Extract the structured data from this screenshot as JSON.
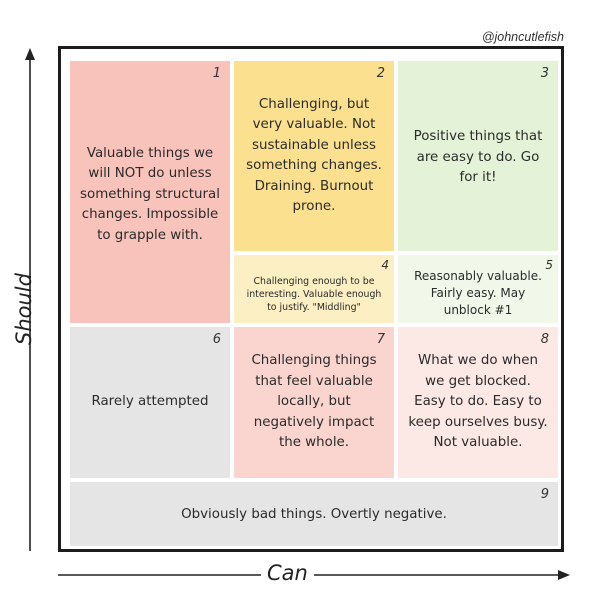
{
  "handle": "@johncutlefish",
  "axes": {
    "y_label": "Should",
    "x_label": "Can"
  },
  "cells": [
    {
      "num": "1",
      "text": "Valuable things we will NOT do unless something structural changes. Impossible to grapple with.",
      "color": "#f8c3bb"
    },
    {
      "num": "2",
      "text": "Challenging, but very valuable. Not sustainable unless something changes. Draining. Burnout prone.",
      "color": "#fbe08f"
    },
    {
      "num": "3",
      "text": "Positive things that are easy to do. Go for it!",
      "color": "#e4f3d7"
    },
    {
      "num": "4",
      "text": "Challenging enough to be interesting. Valuable enough to justify. \"Middling\"",
      "color": "#fcefc4"
    },
    {
      "num": "5",
      "text": "Reasonably valuable. Fairly easy. May unblock #1",
      "color": "#f1f8ea"
    },
    {
      "num": "6",
      "text": "Rarely attempted",
      "color": "#e5e5e5"
    },
    {
      "num": "7",
      "text": "Challenging things that feel valuable locally, but negatively impact the whole.",
      "color": "#fad5cf"
    },
    {
      "num": "8",
      "text": "What we do when we get blocked. Easy to do. Easy to keep ourselves busy. Not valuable.",
      "color": "#fce8e5"
    },
    {
      "num": "9",
      "text": "Obviously bad things. Overtly negative.",
      "color": "#e5e5e5"
    }
  ]
}
